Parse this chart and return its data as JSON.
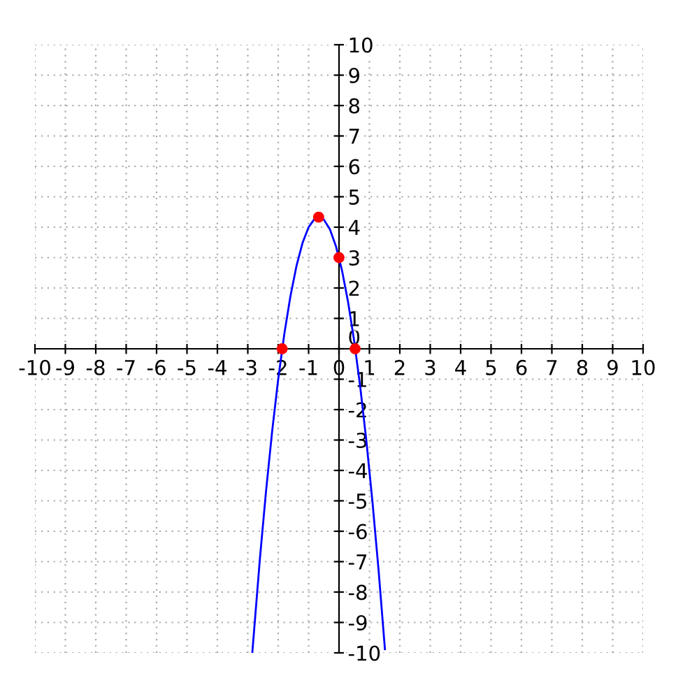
{
  "chart_data": {
    "type": "line",
    "series": [
      {
        "color": "#0000ff",
        "marker": "none",
        "x": [
          -2.85,
          -2.6,
          -2.4,
          -2.2,
          -2.0,
          -1.8,
          -1.6,
          -1.4,
          -1.2,
          -1.0,
          -0.8,
          -0.67,
          -0.5,
          -0.3,
          -0.1,
          0.1,
          0.3,
          0.5,
          0.7,
          0.9,
          1.1,
          1.3,
          1.51
        ],
        "values": [
          -9.97,
          -6.88,
          -4.68,
          -2.72,
          -1.0,
          0.48,
          1.72,
          2.72,
          3.48,
          4.0,
          4.28,
          4.33,
          4.25,
          3.93,
          3.37,
          2.57,
          1.53,
          0.25,
          -1.27,
          -3.03,
          -5.03,
          -7.27,
          -9.88
        ]
      },
      {
        "type": "scatter",
        "color": "#ff0000",
        "marker": "circle",
        "x": [
          -1.87,
          -0.67,
          0,
          0.53
        ],
        "values": [
          0,
          4.33,
          3,
          0
        ]
      }
    ],
    "xlim": [
      -10,
      10
    ],
    "ylim": [
      -10,
      10
    ],
    "xticks": [
      -10,
      -9,
      -8,
      -7,
      -6,
      -5,
      -4,
      -3,
      -2,
      -1,
      0,
      1,
      2,
      3,
      4,
      5,
      6,
      7,
      8,
      9,
      10
    ],
    "yticks": [
      -10,
      -9,
      -8,
      -7,
      -6,
      -5,
      -4,
      -3,
      -2,
      -1,
      0,
      1,
      2,
      3,
      4,
      5,
      6,
      7,
      8,
      9,
      10
    ],
    "grid": true
  }
}
